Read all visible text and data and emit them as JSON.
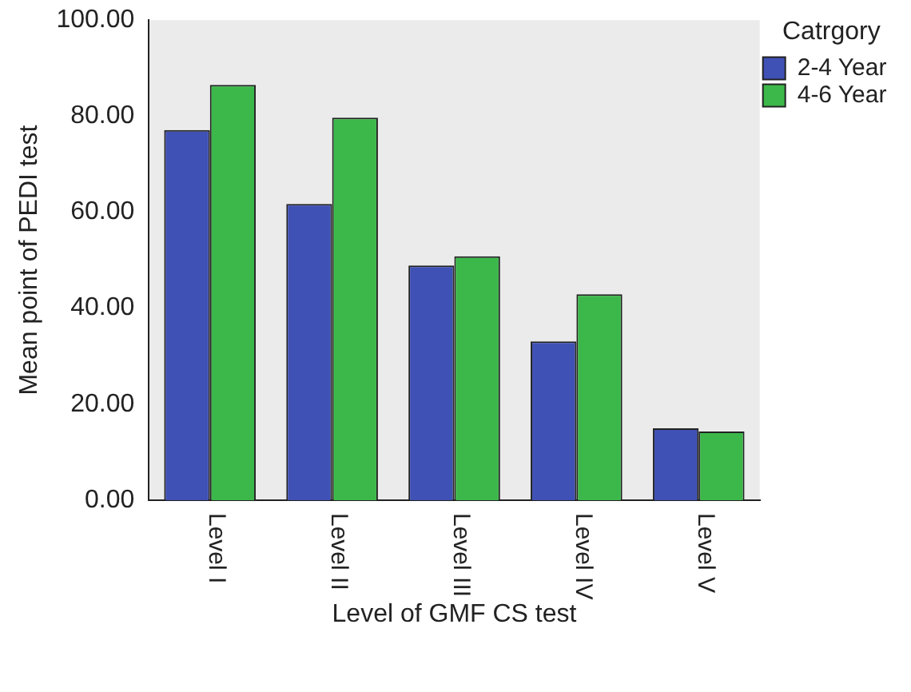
{
  "chart_data": {
    "type": "bar",
    "xlabel": "Level of GMF CS test",
    "ylabel": "Mean point of PEDI test",
    "legend_title": "Catrgory",
    "categories": [
      "Level I",
      "Level II",
      "Level III",
      "Level IV",
      "Level V"
    ],
    "series": [
      {
        "name": "2-4 Year",
        "color": "#3f51b5",
        "values": [
          77.1,
          61.7,
          48.9,
          33.1,
          15.0
        ]
      },
      {
        "name": "4-6 Year",
        "color": "#3cb84a",
        "values": [
          86.5,
          79.7,
          50.8,
          42.9,
          14.3
        ]
      }
    ],
    "ylim": [
      0,
      100
    ],
    "yticks": [
      {
        "value": 0,
        "label": "0.00"
      },
      {
        "value": 20,
        "label": "20.00"
      },
      {
        "value": 40,
        "label": "40.00"
      },
      {
        "value": 60,
        "label": "60.00"
      },
      {
        "value": 80,
        "label": "80.00"
      },
      {
        "value": 100,
        "label": "100.00"
      }
    ],
    "grid": false,
    "legend": "right"
  }
}
